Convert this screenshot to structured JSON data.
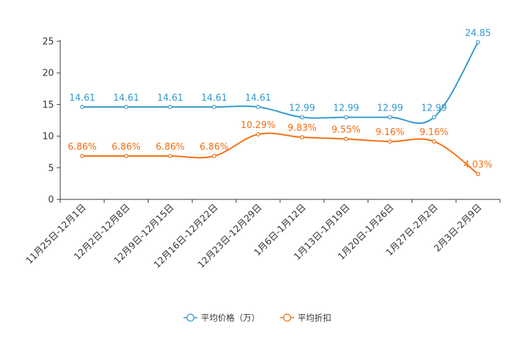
{
  "chart_data": {
    "type": "line",
    "categories": [
      "11月25日-12月1日",
      "12月2日-12月8日",
      "12月9日-12月15日",
      "12月16日-12月22日",
      "12月23日-12月29日",
      "1月6日-1月12日",
      "1月13日-1月19日",
      "1月20日-1月26日",
      "1月27日-2月2日",
      "2月3日-2月9日"
    ],
    "series": [
      {
        "name": "平均价格（万）",
        "color": "#3398cb",
        "values": [
          14.61,
          14.61,
          14.61,
          14.61,
          14.61,
          12.99,
          12.99,
          12.99,
          12.99,
          24.85
        ],
        "labels": [
          "14.61",
          "14.61",
          "14.61",
          "14.61",
          "14.61",
          "12.99",
          "12.99",
          "12.99",
          "12.99",
          "24.85"
        ]
      },
      {
        "name": "平均折扣",
        "color": "#f46d0f",
        "values": [
          6.86,
          6.86,
          6.86,
          6.86,
          10.29,
          9.83,
          9.55,
          9.16,
          9.16,
          4.03
        ],
        "labels": [
          "6.86%",
          "6.86%",
          "6.86%",
          "6.86%",
          "10.29%",
          "9.83%",
          "9.55%",
          "9.16%",
          "9.16%",
          "4.03%"
        ]
      }
    ],
    "yticks": [
      0,
      5,
      10,
      15,
      20,
      25
    ],
    "ylim": [
      0,
      25
    ],
    "title": "",
    "xlabel": "",
    "ylabel": "",
    "legend": "bottom-center",
    "grid": false
  }
}
